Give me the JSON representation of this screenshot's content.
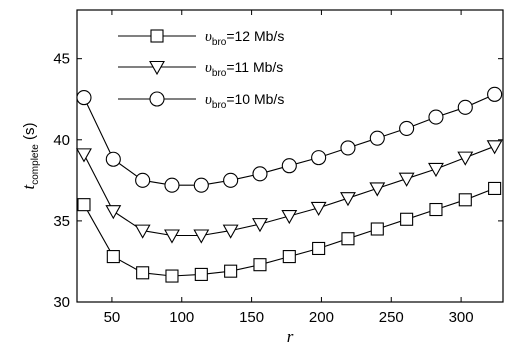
{
  "chart_data": {
    "type": "line",
    "xlabel": "r",
    "ylabel": {
      "main": "t",
      "sub": "complete",
      "unit": "(s)"
    },
    "xlim": [
      25,
      330
    ],
    "ylim": [
      30,
      48
    ],
    "xticks": [
      50,
      100,
      150,
      200,
      250,
      300
    ],
    "yticks": [
      30,
      35,
      40,
      45
    ],
    "grid": false,
    "legend_position": "top-left",
    "x": [
      30,
      51,
      72,
      93,
      114,
      135,
      156,
      177,
      198,
      219,
      240,
      261,
      282,
      303,
      324
    ],
    "series": [
      {
        "name": {
          "var": "υ",
          "sub": "bro",
          "rest": "=12 Mb/s"
        },
        "marker": "square",
        "values": [
          36.0,
          32.8,
          31.8,
          31.6,
          31.7,
          31.9,
          32.3,
          32.8,
          33.3,
          33.9,
          34.5,
          35.1,
          35.7,
          36.3,
          37.0
        ]
      },
      {
        "name": {
          "var": "υ",
          "sub": "bro",
          "rest": "=11 Mb/s"
        },
        "marker": "triangle-down",
        "values": [
          39.1,
          35.6,
          34.4,
          34.1,
          34.1,
          34.4,
          34.8,
          35.3,
          35.8,
          36.4,
          37.0,
          37.6,
          38.2,
          38.9,
          39.6
        ]
      },
      {
        "name": {
          "var": "υ",
          "sub": "bro",
          "rest": "=10 Mb/s"
        },
        "marker": "circle",
        "values": [
          42.6,
          38.8,
          37.5,
          37.2,
          37.2,
          37.5,
          37.9,
          38.4,
          38.9,
          39.5,
          40.1,
          40.7,
          41.4,
          42.0,
          42.8
        ]
      }
    ]
  }
}
